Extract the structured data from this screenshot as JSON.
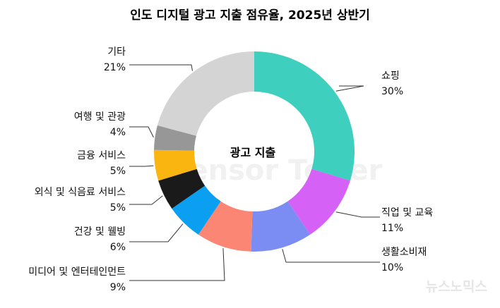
{
  "chart_data": {
    "type": "pie",
    "variant": "donut",
    "title": "인도 디지털 광고 지출 점유율, 2025년 상반기",
    "center_label": "광고 지출",
    "slices": [
      {
        "label": "쇼핑",
        "value": 30,
        "value_text": "30%",
        "color": "#3ecfbf"
      },
      {
        "label": "직업 및 교육",
        "value": 11,
        "value_text": "11%",
        "color": "#d661f7"
      },
      {
        "label": "생활소비재",
        "value": 10,
        "value_text": "10%",
        "color": "#7b8cf2"
      },
      {
        "label": "미디어 및 엔터테인먼트",
        "value": 9,
        "value_text": "9%",
        "color": "#fa8673"
      },
      {
        "label": "건강 및 웰빙",
        "value": 6,
        "value_text": "6%",
        "color": "#0a9ff0"
      },
      {
        "label": "외식 및 식음료 서비스",
        "value": 5,
        "value_text": "5%",
        "color": "#1a1a1a"
      },
      {
        "label": "금융 서비스",
        "value": 5,
        "value_text": "5%",
        "color": "#fbb511"
      },
      {
        "label": "여행 및 관광",
        "value": 4,
        "value_text": "4%",
        "color": "#979797"
      },
      {
        "label": "기타",
        "value": 21,
        "value_text": "21%",
        "color": "#d4d4d4"
      }
    ]
  },
  "watermark": "Sensor Tower",
  "news_mark": "뉴스노믹스"
}
